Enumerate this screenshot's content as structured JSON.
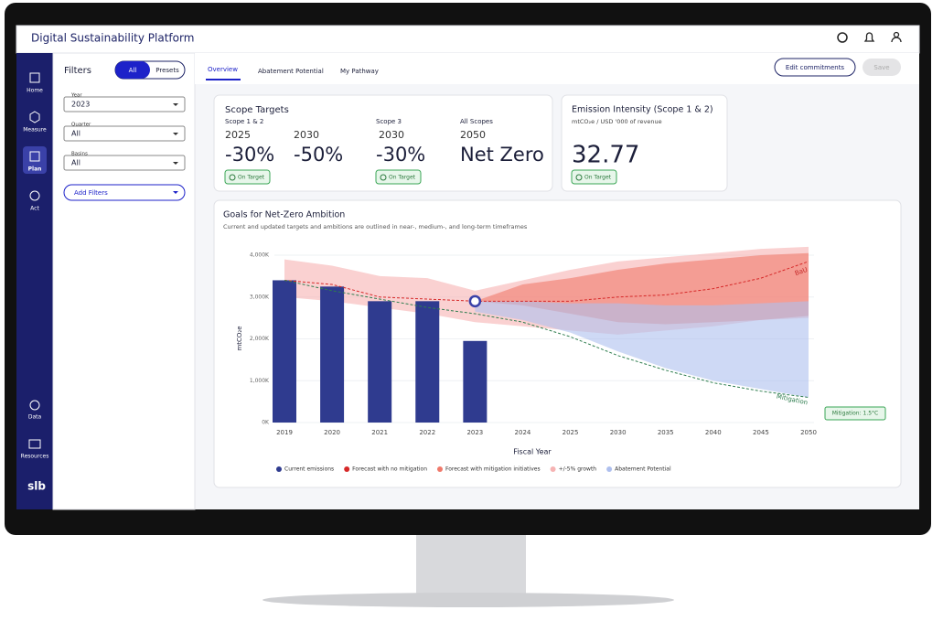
{
  "header": {
    "title": "Digital Sustainability Platform"
  },
  "nav": {
    "items": [
      "Home",
      "Measure",
      "Plan",
      "Act",
      "Data",
      "Resources"
    ],
    "logo": "slb"
  },
  "filters": {
    "title": "Filters",
    "toggle": [
      "All",
      "Presets"
    ],
    "fields": [
      {
        "label": "Year",
        "value": "2023"
      },
      {
        "label": "Quarter",
        "value": "All"
      },
      {
        "label": "Basins",
        "value": "All"
      }
    ],
    "add": "Add Filters"
  },
  "tabs": [
    "Overview",
    "Abatement Potential",
    "My Pathway"
  ],
  "buttons": [
    "Edit commitments",
    "Save"
  ],
  "scope_targets": {
    "title": "Scope Targets",
    "groups": [
      {
        "label": "Scope 1 & 2",
        "targets": [
          {
            "year": "2025",
            "value": "-30%"
          },
          {
            "year": "2030",
            "value": "-50%"
          }
        ],
        "status": "On Target"
      },
      {
        "label": "Scope 3",
        "targets": [
          {
            "year": "2030",
            "value": "-30%"
          }
        ],
        "status": "On Target"
      },
      {
        "label": "All Scopes",
        "targets": [
          {
            "year": "2050",
            "value": "Net Zero"
          }
        ]
      }
    ]
  },
  "emission_intensity": {
    "title": "Emission Intensity (Scope 1 & 2)",
    "unit": "mtCO₂e / USD '000 of revenue",
    "value": "32.77",
    "status": "On Target"
  },
  "chart_data": {
    "type": "combo",
    "title": "Goals for Net-Zero Ambition",
    "subtitle": "Current and updated targets and ambitions are outlined in near-, medium-, and long-term timeframes",
    "x_label": "Fiscal Year",
    "y_label": "mtCO₂e",
    "categories": [
      "2019",
      "2020",
      "2021",
      "2022",
      "2023",
      "2024",
      "2025",
      "2030",
      "2035",
      "2040",
      "2045",
      "2050"
    ],
    "ylim": [
      0,
      4000
    ],
    "yticks": [
      {
        "value": 0,
        "label": "0K"
      },
      {
        "value": 1000,
        "label": "1,000K"
      },
      {
        "value": 2000,
        "label": "2,000K"
      },
      {
        "value": 3000,
        "label": "3,000K"
      },
      {
        "value": 4000,
        "label": "4,000K"
      }
    ],
    "grid": true,
    "series": [
      {
        "name": "Current emissions",
        "type": "bar",
        "color": "#2f3b8f",
        "values": [
          3400,
          3250,
          2900,
          2900,
          1950,
          null,
          null,
          null,
          null,
          null,
          null,
          null
        ]
      },
      {
        "name": "Forecast with no mitigation",
        "type": "line",
        "color": "#d62828",
        "values": [
          3400,
          3300,
          3000,
          2950,
          2900,
          2900,
          2900,
          3000,
          3050,
          3200,
          3450,
          3850
        ]
      },
      {
        "name": "Forecast with mitigation initiatives",
        "type": "line",
        "color": "#f0796b",
        "line_color": "#2e7d4f",
        "values": [
          3400,
          3150,
          2950,
          2750,
          2600,
          2400,
          2050,
          1600,
          1250,
          950,
          750,
          600
        ],
        "low": [
          null,
          null,
          null,
          null,
          2900,
          2800,
          2600,
          2400,
          2350,
          2400,
          2450,
          2550
        ],
        "high": [
          null,
          null,
          null,
          null,
          2900,
          3300,
          3450,
          3650,
          3800,
          3900,
          4000,
          4050
        ]
      },
      {
        "name": "+/-5% growth",
        "type": "band",
        "color": "#f6b3b3",
        "low": [
          3000,
          2900,
          2750,
          2600,
          2400,
          2300,
          2200,
          2100,
          2200,
          2300,
          2450,
          2500
        ],
        "high": [
          3900,
          3750,
          3500,
          3450,
          3150,
          3400,
          3650,
          3850,
          3950,
          4050,
          4150,
          4200
        ]
      },
      {
        "name": "Abatement Potential",
        "type": "band",
        "color": "#aebfee",
        "low": [
          null,
          null,
          null,
          null,
          2650,
          2450,
          2150,
          1700,
          1300,
          1000,
          800,
          600
        ],
        "high": [
          null,
          null,
          null,
          null,
          2900,
          2900,
          2850,
          2850,
          2800,
          2800,
          2850,
          2900
        ]
      }
    ],
    "annotations": [
      "BaU",
      "Mitigation",
      "Mitigation: 1.5°C"
    ]
  }
}
